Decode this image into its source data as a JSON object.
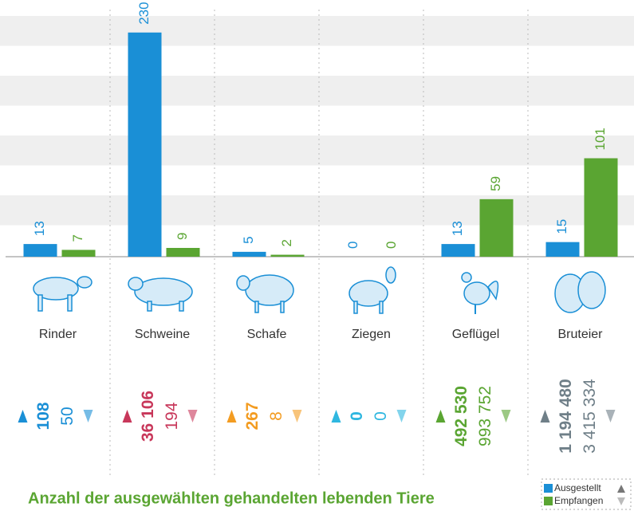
{
  "chart_data": {
    "type": "bar",
    "title": "Anzahl der ausgewählten gehandelten lebenden Tiere",
    "categories": [
      "Rinder",
      "Schweine",
      "Schafe",
      "Ziegen",
      "Geflügel",
      "Bruteier"
    ],
    "series": [
      {
        "name": "Ausgestellt",
        "color": "#1a8fd6",
        "values": [
          13,
          230,
          5,
          0,
          13,
          15
        ]
      },
      {
        "name": "Empfangen",
        "color": "#5aa532",
        "values": [
          7,
          9,
          2,
          0,
          59,
          101
        ]
      }
    ],
    "ylim": [
      0,
      247
    ],
    "grid": true
  },
  "trade": {
    "rows": [
      {
        "color": "#1a8fd6",
        "exported": "108",
        "imported": "50"
      },
      {
        "color": "#c8375a",
        "exported": "36 106",
        "imported": "194"
      },
      {
        "color": "#f39c21",
        "exported": "267",
        "imported": "8"
      },
      {
        "color": "#2fb7e0",
        "exported": "0",
        "imported": "0"
      },
      {
        "color": "#5aa532",
        "exported": "492 530",
        "imported": "993 752"
      },
      {
        "color": "#6f7f88",
        "exported": "1 194 480",
        "imported": "3 415 334"
      }
    ]
  }
}
